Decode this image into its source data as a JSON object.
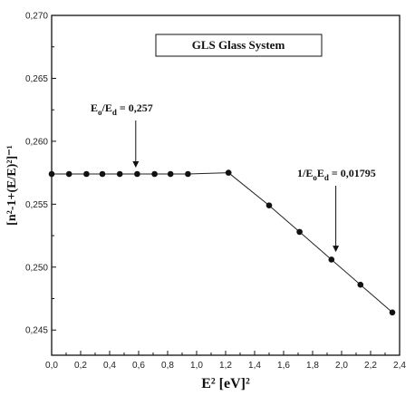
{
  "chart_data": {
    "type": "scatter",
    "title": "GLS Glass System",
    "xlabel": "E² [eV]²",
    "ylabel": "[n²-1+(E/E)²]⁻¹",
    "xlim": [
      0.0,
      2.4
    ],
    "ylim": [
      0.243,
      0.27
    ],
    "x_ticks": [
      "0,0",
      "0,2",
      "0,4",
      "0,6",
      "0,8",
      "1,0",
      "1,2",
      "1,4",
      "1,6",
      "1,8",
      "2,0",
      "2,2",
      "2,4"
    ],
    "y_ticks": [
      "0,245",
      "0,250",
      "0,255",
      "0,260",
      "0,265",
      "0,270"
    ],
    "grid": false,
    "series": [
      {
        "x": [
          0.0,
          0.12,
          0.24,
          0.35,
          0.47,
          0.59,
          0.71,
          0.82,
          0.94,
          1.22,
          1.5,
          1.71,
          1.93,
          2.13,
          2.35
        ],
        "y": [
          0.2574,
          0.2574,
          0.2574,
          0.2574,
          0.2574,
          0.2574,
          0.2574,
          0.2574,
          0.2574,
          0.2575,
          0.2549,
          0.2528,
          0.2506,
          0.2486,
          0.2464
        ],
        "fit_line": true
      }
    ],
    "annotations": [
      {
        "text": "Eo/Ed = 0,257",
        "main": "E",
        "sub1": "o",
        "mid": "/E",
        "sub2": "d",
        "tail": " = 0,257",
        "arrow_to_x": 0.58,
        "arrow_to_y": 0.2579
      },
      {
        "text": "1/EoEd = 0,01795",
        "main": "1/E",
        "sub1": "o",
        "mid": "E",
        "sub2": "d",
        "tail": " = 0,01795",
        "arrow_to_x": 1.96,
        "arrow_to_y": 0.2512
      }
    ]
  }
}
